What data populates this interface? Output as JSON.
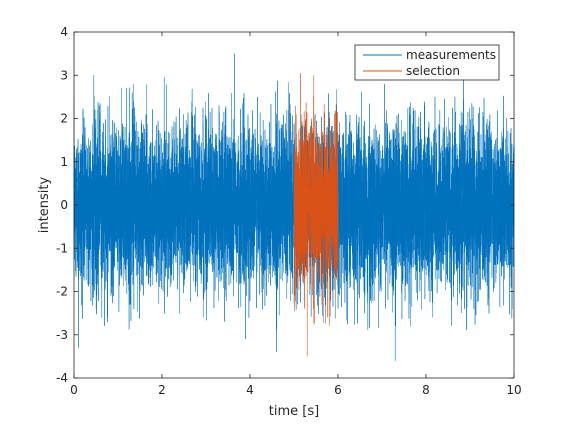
{
  "chart_data": {
    "type": "line",
    "xlabel": "time [s]",
    "ylabel": "intensity",
    "xlim": [
      0,
      10
    ],
    "ylim": [
      -4,
      4
    ],
    "x_ticks": [
      0,
      2,
      4,
      6,
      8,
      10
    ],
    "y_ticks": [
      -4,
      -3,
      -2,
      -1,
      0,
      1,
      2,
      3,
      4
    ],
    "grid": false,
    "legend_position": "top-right",
    "series": [
      {
        "name": "measurements",
        "color": "#0072BD",
        "x_range": [
          0,
          10
        ],
        "distribution": {
          "mean": 0,
          "std": 0.9
        },
        "extremes": [
          {
            "x": 3.65,
            "y": 3.5
          },
          {
            "x": 7.3,
            "y": -3.6
          },
          {
            "x": 4.6,
            "y": -3.4
          },
          {
            "x": 0.1,
            "y": -3.3
          },
          {
            "x": 0.45,
            "y": 3.0
          },
          {
            "x": 8.85,
            "y": 3.0
          },
          {
            "x": 2.05,
            "y": 2.95
          },
          {
            "x": 3.9,
            "y": -3.1
          }
        ]
      },
      {
        "name": "selection",
        "color": "#D95319",
        "x_range": [
          5,
          6
        ],
        "distribution": {
          "mean": 0,
          "std": 0.9
        },
        "extremes": [
          {
            "x": 5.15,
            "y": 3.05
          },
          {
            "x": 5.3,
            "y": -3.5
          },
          {
            "x": 5.45,
            "y": 3.0
          },
          {
            "x": 5.8,
            "y": -2.8
          }
        ]
      }
    ]
  }
}
